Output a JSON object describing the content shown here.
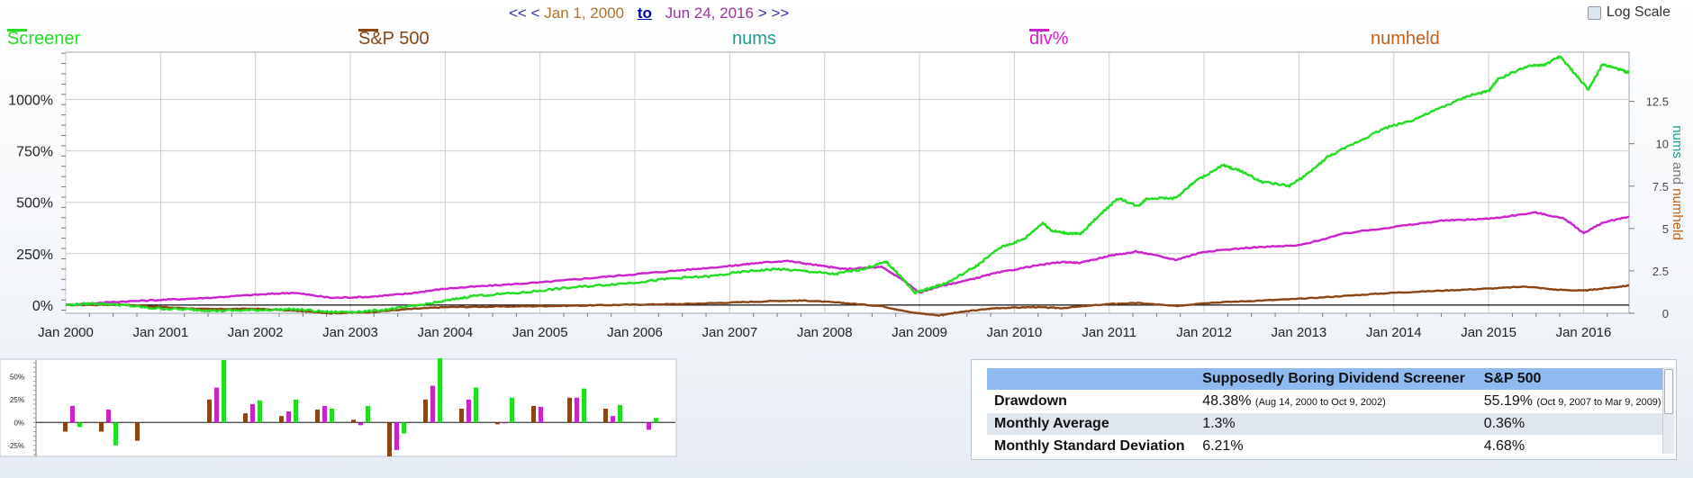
{
  "nav": {
    "prev_far": "<<",
    "prev": "<",
    "start_date": "Jan 1, 2000",
    "to_link": "to",
    "end_date": "Jun 24, 2016",
    "next": ">",
    "next_far": ">>"
  },
  "log_scale": {
    "label": "Log Scale",
    "checked": false
  },
  "legend": {
    "screener": {
      "label": "Screener",
      "color": "#22dd22"
    },
    "sp500": {
      "label": "S&P 500",
      "color": "#8b4513"
    },
    "nums": {
      "label": "nums",
      "color": "#1a9e90"
    },
    "div": {
      "label": "div%",
      "color": "#cc22cc"
    },
    "numheld": {
      "label": "numheld",
      "color": "#c06018"
    }
  },
  "chart_data": [
    {
      "type": "line",
      "x_range": [
        "2000-01-01",
        "2016-06-24"
      ],
      "x_ticks": [
        "Jan 2000",
        "Jan 2001",
        "Jan 2002",
        "Jan 2003",
        "Jan 2004",
        "Jan 2005",
        "Jan 2006",
        "Jan 2007",
        "Jan 2008",
        "Jan 2009",
        "Jan 2010",
        "Jan 2011",
        "Jan 2012",
        "Jan 2013",
        "Jan 2014",
        "Jan 2015",
        "Jan 2016"
      ],
      "y_left": {
        "ticks": [
          "0%",
          "250%",
          "500%",
          "750%",
          "1000%"
        ],
        "tick_values": [
          0,
          250,
          500,
          750,
          1000
        ],
        "range": [
          -40,
          1230
        ]
      },
      "y_right": {
        "label": "nums and numheld",
        "ticks": [
          "0",
          "2.5",
          "5",
          "7.5",
          "10",
          "12.5"
        ],
        "tick_values": [
          0,
          2.5,
          5,
          7.5,
          10,
          12.5
        ],
        "range": [
          0,
          15.4
        ]
      },
      "grid": true,
      "series": [
        {
          "key": "screener",
          "name": "Screener",
          "color": "#22dd22",
          "points": [
            [
              2000.0,
              0
            ],
            [
              2000.3,
              8
            ],
            [
              2000.6,
              0
            ],
            [
              2000.9,
              -15
            ],
            [
              2001.3,
              -22
            ],
            [
              2001.6,
              -28
            ],
            [
              2002.0,
              -25
            ],
            [
              2002.4,
              -20
            ],
            [
              2002.8,
              -35
            ],
            [
              2003.2,
              -30
            ],
            [
              2003.6,
              -10
            ],
            [
              2004.0,
              20
            ],
            [
              2004.3,
              45
            ],
            [
              2004.8,
              60
            ],
            [
              2005.2,
              80
            ],
            [
              2005.6,
              95
            ],
            [
              2006.0,
              110
            ],
            [
              2006.4,
              130
            ],
            [
              2006.8,
              140
            ],
            [
              2007.2,
              165
            ],
            [
              2007.5,
              175
            ],
            [
              2007.8,
              165
            ],
            [
              2008.1,
              150
            ],
            [
              2008.4,
              175
            ],
            [
              2008.65,
              210
            ],
            [
              2008.8,
              140
            ],
            [
              2008.95,
              60
            ],
            [
              2009.1,
              80
            ],
            [
              2009.3,
              110
            ],
            [
              2009.6,
              190
            ],
            [
              2009.85,
              280
            ],
            [
              2010.1,
              320
            ],
            [
              2010.3,
              400
            ],
            [
              2010.4,
              360
            ],
            [
              2010.55,
              350
            ],
            [
              2010.7,
              345
            ],
            [
              2010.9,
              440
            ],
            [
              2011.1,
              520
            ],
            [
              2011.3,
              480
            ],
            [
              2011.4,
              520
            ],
            [
              2011.7,
              520
            ],
            [
              2011.9,
              600
            ],
            [
              2012.2,
              680
            ],
            [
              2012.4,
              650
            ],
            [
              2012.6,
              600
            ],
            [
              2012.9,
              580
            ],
            [
              2013.1,
              640
            ],
            [
              2013.3,
              720
            ],
            [
              2013.6,
              790
            ],
            [
              2013.9,
              860
            ],
            [
              2014.2,
              900
            ],
            [
              2014.5,
              960
            ],
            [
              2014.8,
              1020
            ],
            [
              2015.0,
              1040
            ],
            [
              2015.1,
              1100
            ],
            [
              2015.4,
              1160
            ],
            [
              2015.6,
              1170
            ],
            [
              2015.75,
              1210
            ],
            [
              2015.9,
              1130
            ],
            [
              2016.05,
              1050
            ],
            [
              2016.2,
              1170
            ],
            [
              2016.35,
              1150
            ],
            [
              2016.48,
              1130
            ]
          ]
        },
        {
          "key": "sp500",
          "name": "S&P 500",
          "color": "#8b4513",
          "points": [
            [
              2000.0,
              0
            ],
            [
              2000.6,
              2
            ],
            [
              2001.0,
              -10
            ],
            [
              2001.5,
              -20
            ],
            [
              2002.0,
              -18
            ],
            [
              2002.5,
              -30
            ],
            [
              2002.8,
              -40
            ],
            [
              2003.2,
              -35
            ],
            [
              2003.6,
              -20
            ],
            [
              2004.0,
              -10
            ],
            [
              2004.5,
              -8
            ],
            [
              2005.0,
              -5
            ],
            [
              2005.5,
              -2
            ],
            [
              2006.0,
              2
            ],
            [
              2006.5,
              5
            ],
            [
              2007.0,
              12
            ],
            [
              2007.5,
              20
            ],
            [
              2007.8,
              22
            ],
            [
              2008.2,
              10
            ],
            [
              2008.6,
              -5
            ],
            [
              2008.9,
              -35
            ],
            [
              2009.2,
              -50
            ],
            [
              2009.5,
              -30
            ],
            [
              2009.8,
              -15
            ],
            [
              2010.2,
              -10
            ],
            [
              2010.5,
              -15
            ],
            [
              2011.0,
              5
            ],
            [
              2011.3,
              10
            ],
            [
              2011.7,
              -5
            ],
            [
              2012.0,
              10
            ],
            [
              2012.5,
              20
            ],
            [
              2013.0,
              30
            ],
            [
              2013.5,
              45
            ],
            [
              2014.0,
              60
            ],
            [
              2014.5,
              70
            ],
            [
              2015.0,
              80
            ],
            [
              2015.4,
              90
            ],
            [
              2015.7,
              75
            ],
            [
              2016.0,
              70
            ],
            [
              2016.2,
              80
            ],
            [
              2016.48,
              95
            ]
          ]
        },
        {
          "key": "div",
          "name": "div%",
          "color": "#cc22cc",
          "points": [
            [
              2000.0,
              0
            ],
            [
              2000.5,
              15
            ],
            [
              2001.0,
              25
            ],
            [
              2001.5,
              35
            ],
            [
              2002.0,
              50
            ],
            [
              2002.4,
              60
            ],
            [
              2002.8,
              35
            ],
            [
              2003.2,
              40
            ],
            [
              2003.6,
              55
            ],
            [
              2004.0,
              80
            ],
            [
              2004.5,
              95
            ],
            [
              2005.0,
              110
            ],
            [
              2005.5,
              130
            ],
            [
              2006.0,
              150
            ],
            [
              2006.5,
              170
            ],
            [
              2007.0,
              190
            ],
            [
              2007.3,
              205
            ],
            [
              2007.6,
              215
            ],
            [
              2007.9,
              195
            ],
            [
              2008.2,
              175
            ],
            [
              2008.6,
              185
            ],
            [
              2008.8,
              130
            ],
            [
              2009.0,
              60
            ],
            [
              2009.2,
              90
            ],
            [
              2009.5,
              120
            ],
            [
              2009.8,
              155
            ],
            [
              2010.2,
              190
            ],
            [
              2010.5,
              210
            ],
            [
              2010.7,
              205
            ],
            [
              2011.0,
              240
            ],
            [
              2011.3,
              260
            ],
            [
              2011.7,
              220
            ],
            [
              2012.0,
              260
            ],
            [
              2012.5,
              280
            ],
            [
              2013.0,
              290
            ],
            [
              2013.5,
              350
            ],
            [
              2014.0,
              380
            ],
            [
              2014.5,
              410
            ],
            [
              2015.0,
              420
            ],
            [
              2015.5,
              450
            ],
            [
              2015.8,
              420
            ],
            [
              2016.0,
              350
            ],
            [
              2016.2,
              400
            ],
            [
              2016.48,
              430
            ]
          ]
        }
      ]
    },
    {
      "type": "bar",
      "y_ticks": [
        "50%",
        "25%",
        "0%",
        "-25%"
      ],
      "y_tick_values": [
        50,
        25,
        0,
        -25
      ],
      "range": [
        -37,
        68
      ],
      "groups": [
        [
          -10,
          18,
          -5
        ],
        [
          -10,
          14,
          -25
        ],
        [
          -20,
          0,
          0
        ],
        [
          0,
          0,
          0
        ],
        [
          25,
          38,
          68
        ],
        [
          10,
          20,
          24
        ],
        [
          7,
          12,
          25
        ],
        [
          14,
          18,
          15
        ],
        [
          3,
          -3,
          18
        ],
        [
          -37,
          -30,
          -12
        ],
        [
          25,
          40,
          70
        ],
        [
          15,
          25,
          38
        ],
        [
          -2,
          -1,
          27
        ],
        [
          18,
          17,
          0
        ],
        [
          27,
          27,
          37
        ],
        [
          15,
          7,
          19
        ],
        [
          0,
          -8,
          5
        ]
      ],
      "series_colors": [
        "#8b4513",
        "#cc22cc",
        "#22dd22"
      ]
    }
  ],
  "stats": {
    "headers": [
      "",
      "Supposedly Boring Dividend Screener",
      "S&P 500"
    ],
    "rows": [
      {
        "label": "Drawdown",
        "screener": "48.38%",
        "screener_note": "(Aug 14, 2000 to Oct 9, 2002)",
        "sp": "55.19%",
        "sp_note": "(Oct 9, 2007 to Mar 9, 2009)"
      },
      {
        "label": "Monthly Average",
        "screener": "1.3%",
        "sp": "0.36%"
      },
      {
        "label": "Monthly Standard Deviation",
        "screener": "6.21%",
        "sp": "4.68%"
      }
    ]
  }
}
